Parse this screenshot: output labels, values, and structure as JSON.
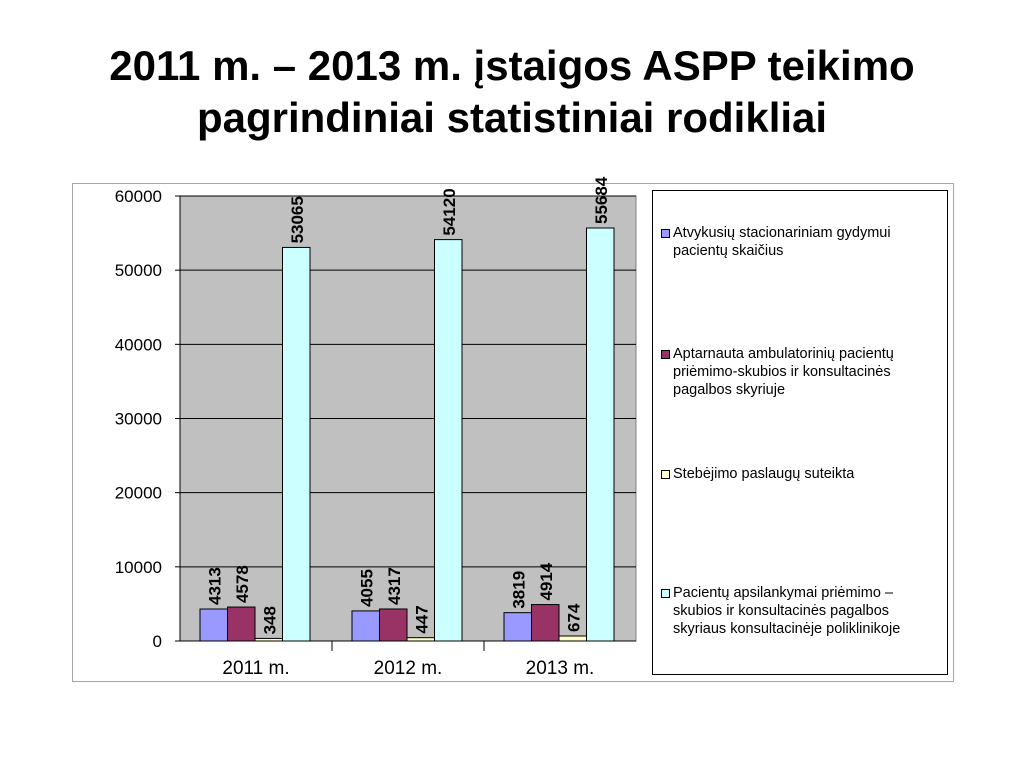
{
  "slide": {
    "title_line1": "2011 m. – 2013 m. įstaigos ASPP teikimo",
    "title_line2": "pagrindiniai statistiniai rodikliai"
  },
  "chart_data": {
    "type": "bar",
    "categories": [
      "2011 m.",
      "2012 m.",
      "2013 m."
    ],
    "ylim": [
      0,
      60000
    ],
    "y_ticks": [
      "0",
      "10000",
      "20000",
      "30000",
      "40000",
      "50000",
      "60000"
    ],
    "grid": true,
    "legend_position": "right",
    "plot_background": "#c0c0c0",
    "series": [
      {
        "name": "Atvykusių stacionariniam gydymui pacientų skaičius",
        "color": "#9999ff",
        "values": [
          4313,
          4055,
          3819
        ],
        "labels": [
          "4313",
          "4055",
          "3819"
        ]
      },
      {
        "name": "Aptarnauta ambulatorinių pacientų priėmimo-skubios ir konsultacinės pagalbos skyriuje",
        "color": "#993366",
        "values": [
          4578,
          4317,
          4914
        ],
        "labels": [
          "4578",
          "4317",
          "4914"
        ]
      },
      {
        "name": "Stebėjimo paslaugų suteikta",
        "color": "#ffffcc",
        "values": [
          348,
          447,
          674
        ],
        "labels": [
          "348",
          "447",
          "674"
        ]
      },
      {
        "name": "Pacientų apsilankymai priėmimo – skubios ir konsultacinės pagalbos skyriaus konsultacinėje poliklinikoje",
        "color": "#ccffff",
        "values": [
          53065,
          54120,
          55684
        ],
        "labels": [
          "53065",
          "54120",
          "55684"
        ]
      }
    ]
  }
}
